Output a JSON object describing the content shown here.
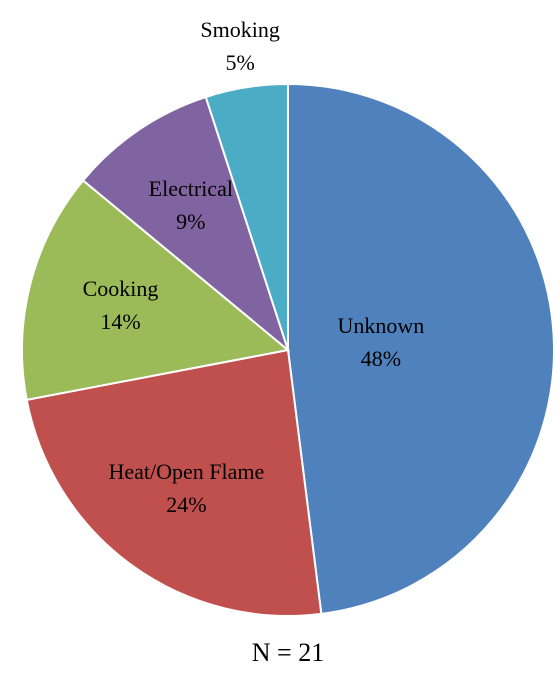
{
  "chart_data": {
    "type": "pie",
    "categories": [
      "Unknown",
      "Heat/Open Flame",
      "Cooking",
      "Electrical",
      "Smoking"
    ],
    "values": [
      48,
      24,
      14,
      9,
      5
    ],
    "value_labels": [
      "48%",
      "24%",
      "14%",
      "9%",
      "5%"
    ],
    "colors": [
      "#4f81bd",
      "#c0504d",
      "#9bbb59",
      "#8064a2",
      "#4bacc6"
    ],
    "annotation": "N = 21"
  }
}
